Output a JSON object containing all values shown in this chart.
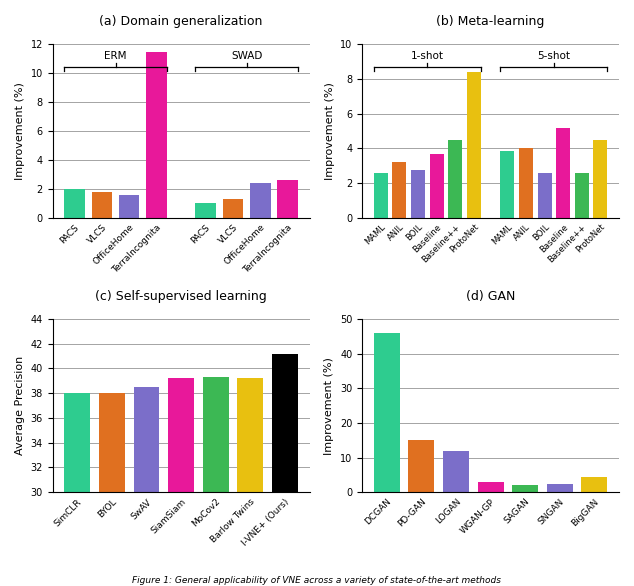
{
  "subplot_a": {
    "title": "(a) Domain generalization",
    "ylabel": "Improvement (%)",
    "ylim": [
      0,
      12
    ],
    "yticks": [
      0,
      2,
      4,
      6,
      8,
      10,
      12
    ],
    "groups": {
      "ERM": {
        "labels": [
          "PACS",
          "VLCS",
          "OfficeHome",
          "TerraIncognita"
        ],
        "values": [
          2.0,
          1.8,
          1.6,
          11.5
        ],
        "colors": [
          "#2ecc8f",
          "#e07020",
          "#7b6ec9",
          "#e8189a"
        ]
      },
      "SWAD": {
        "labels": [
          "PACS",
          "VLCS",
          "OfficeHome",
          "TerraIncognita"
        ],
        "values": [
          1.0,
          1.3,
          2.4,
          2.6
        ],
        "colors": [
          "#2ecc8f",
          "#e07020",
          "#7b6ec9",
          "#e8189a"
        ]
      }
    }
  },
  "subplot_b": {
    "title": "(b) Meta-learning",
    "ylabel": "Improvement (%)",
    "ylim": [
      0,
      10
    ],
    "yticks": [
      0,
      2,
      4,
      6,
      8,
      10
    ],
    "groups": {
      "1-shot": {
        "labels": [
          "MAML",
          "ANIL",
          "BOIL",
          "Baseline",
          "Baseline++",
          "ProtoNet"
        ],
        "values": [
          2.6,
          3.2,
          2.75,
          3.7,
          4.5,
          8.4
        ],
        "colors": [
          "#2ecc8f",
          "#e07020",
          "#7b6ec9",
          "#e8189a",
          "#3cb854",
          "#e8c010"
        ]
      },
      "5-shot": {
        "labels": [
          "MAML",
          "ANIL",
          "BOIL",
          "Baseline",
          "Baseline++",
          "ProtoNet"
        ],
        "values": [
          3.85,
          4.05,
          2.6,
          5.2,
          2.6,
          4.5
        ],
        "colors": [
          "#2ecc8f",
          "#e07020",
          "#7b6ec9",
          "#e8189a",
          "#3cb854",
          "#e8c010"
        ]
      }
    }
  },
  "subplot_c": {
    "title": "(c) Self-supervised learning",
    "ylabel": "Average Precision",
    "ylim": [
      30,
      44
    ],
    "yticks": [
      30,
      32,
      34,
      36,
      38,
      40,
      42,
      44
    ],
    "labels": [
      "SimCLR",
      "BYOL",
      "SwAV",
      "SiamSiam",
      "MoCov2",
      "Barlow Twins",
      "I-VNE+ (Ours)"
    ],
    "values": [
      38.0,
      38.0,
      38.5,
      39.2,
      39.3,
      39.2,
      41.2
    ],
    "colors": [
      "#2ecc8f",
      "#e07020",
      "#7b6ec9",
      "#e8189a",
      "#3cb854",
      "#e8c010",
      "#000000"
    ]
  },
  "subplot_d": {
    "title": "(d) GAN",
    "ylabel": "Improvement (%)",
    "ylim": [
      0,
      50
    ],
    "yticks": [
      0,
      10,
      20,
      30,
      40,
      50
    ],
    "labels": [
      "DCGAN",
      "PD-GAN",
      "LOGAN",
      "WGAN-GP",
      "SAGAN",
      "SNGAN",
      "BigGAN"
    ],
    "values": [
      46.0,
      15.0,
      12.0,
      3.0,
      2.0,
      2.5,
      4.5
    ],
    "colors": [
      "#2ecc8f",
      "#e07020",
      "#7b6ec9",
      "#e8189a",
      "#3cb854",
      "#7b6ec9",
      "#e8c010"
    ]
  },
  "figure_title": "Figure 1: General applicability of VNE across a variety of state-of-the-art methods"
}
